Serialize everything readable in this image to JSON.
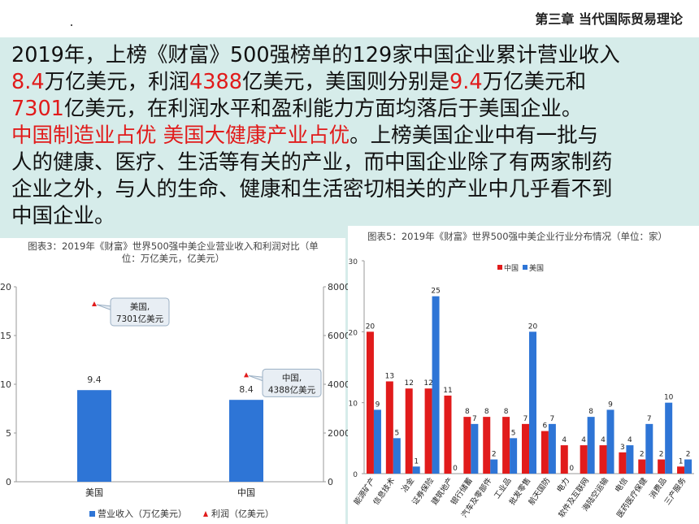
{
  "header": {
    "chapter": "第三章  当代国际贸易理论"
  },
  "paragraph": [
    {
      "text": "2019年，上榜《财富》500强榜单的129家中国企业累计营业收入",
      "red": false
    },
    {
      "text": "\n",
      "red": false
    },
    {
      "text": "8.4",
      "red": true
    },
    {
      "text": "万亿美元，利润",
      "red": false
    },
    {
      "text": "4388",
      "red": true
    },
    {
      "text": "亿美元，美国则分别是",
      "red": false
    },
    {
      "text": "9.4",
      "red": true
    },
    {
      "text": "万亿美元和",
      "red": false
    },
    {
      "text": "\n",
      "red": false
    },
    {
      "text": "7301",
      "red": true
    },
    {
      "text": "亿美元，在利润水平和盈利能力方面均落后于美国企业。",
      "red": false
    },
    {
      "text": "\n",
      "red": false
    },
    {
      "text": "中国制造业占优 美国大健康产业占优",
      "red": true
    },
    {
      "text": "。上榜美国企业中有一批与",
      "red": false
    },
    {
      "text": "\n",
      "red": false
    },
    {
      "text": "人的健康、医疗、生活等有关的产业，而中国企业除了有两家制药",
      "red": false
    },
    {
      "text": "\n",
      "red": false
    },
    {
      "text": "企业之外，与人的生命、健康和生活密切相关的产业中几乎看不到",
      "red": false
    },
    {
      "text": "\n",
      "red": false
    },
    {
      "text": "中国企业。",
      "red": false
    }
  ],
  "chart_data": [
    {
      "type": "bar",
      "title": "图表3：2019年《财富》世界500强中美企业营业收入和利润对比（单位：万亿美元，亿美元）",
      "title_lines": [
        "图表3：2019年《财富》世界500强中美企业营业收入和利润对比（单",
        "位：万亿美元，亿美元）"
      ],
      "categories": [
        "美国",
        "中国"
      ],
      "series": [
        {
          "name": "营业收入（万亿美元）",
          "axis": "left",
          "values": [
            9.4,
            8.4
          ],
          "labels": [
            "9.4",
            "8.4"
          ],
          "color": "#2e75d6"
        },
        {
          "name": "利润（亿美元）",
          "axis": "right",
          "values": [
            7301,
            4388
          ],
          "color": "#e11b1b",
          "marker": "triangle"
        }
      ],
      "callouts": [
        {
          "lines": [
            "美国,",
            "7301亿美元"
          ]
        },
        {
          "lines": [
            "中国,",
            "4388亿美元"
          ]
        }
      ],
      "ylim_left": [
        0,
        20
      ],
      "yticks_left": [
        "0",
        "5",
        "10",
        "15",
        "20"
      ],
      "ylim_right": [
        0,
        8000
      ],
      "yticks_right": [
        "0",
        "2000",
        "4000",
        "6000",
        "8000"
      ],
      "legend_position": "bottom"
    },
    {
      "type": "bar",
      "title": "图表5：2019年《财富》世界500强中美企业行业分布情况（单位：家）",
      "categories": [
        "能源矿产",
        "信息技术",
        "冶金",
        "证券保险",
        "建筑地产",
        "银行储蓄",
        "汽车及零部件",
        "工业品",
        "批发零售",
        "航天国防",
        "电力",
        "软件及互联网",
        "海陆空运输",
        "电信",
        "医药医疗保健",
        "消费品",
        "三产服务"
      ],
      "series": [
        {
          "name": "中国",
          "values": [
            20,
            13,
            12,
            12,
            11,
            8,
            8,
            8,
            7,
            6,
            4,
            4,
            4,
            3,
            2,
            2,
            1
          ],
          "color": "#e11b1b"
        },
        {
          "name": "美国",
          "values": [
            9,
            5,
            1,
            25,
            0,
            7,
            2,
            5,
            20,
            7,
            0,
            8,
            9,
            4,
            7,
            10,
            2
          ],
          "color": "#2e75d6"
        }
      ],
      "ylim": [
        0,
        30
      ],
      "yticks": [
        "0",
        "10",
        "20",
        "30"
      ],
      "legend_position": "top-left"
    }
  ]
}
